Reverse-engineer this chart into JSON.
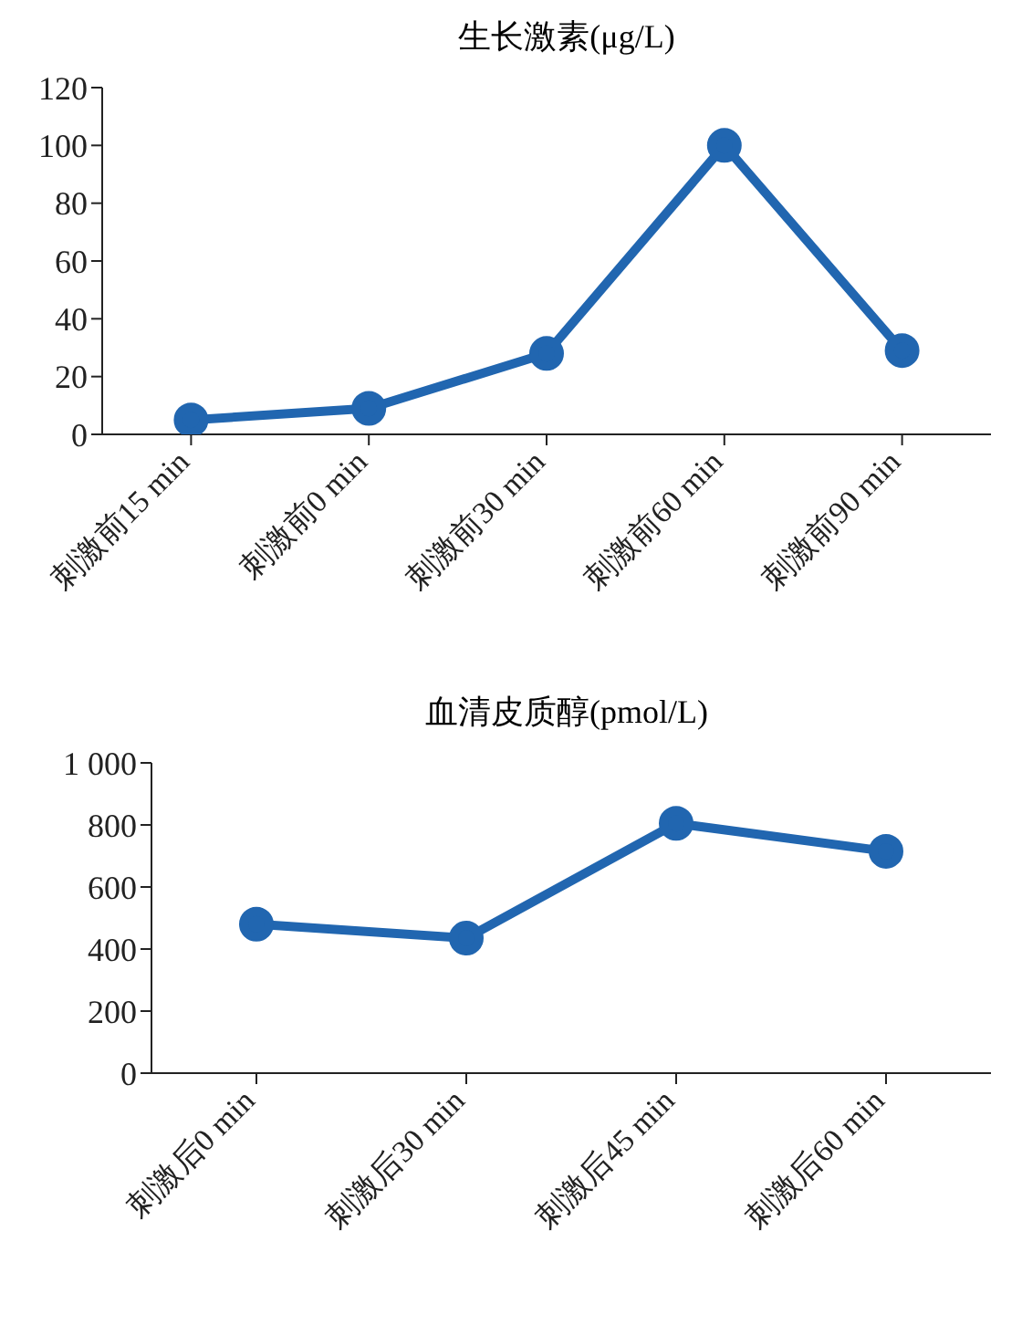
{
  "chart_data": [
    {
      "type": "line",
      "title": "生长激素(μg/L)",
      "categories": [
        "刺激前15 min",
        "刺激前0 min",
        "刺激前30 min",
        "刺激前60 min",
        "刺激前90 min"
      ],
      "series": [
        {
          "color": "#2166b0",
          "values": [
            5,
            9,
            28,
            100,
            29
          ]
        }
      ],
      "ylim": [
        0,
        120
      ],
      "yticks": [
        0,
        20,
        40,
        60,
        80,
        100,
        120
      ],
      "grid": false,
      "legend": false,
      "marker": "circle",
      "line_style": "solid"
    },
    {
      "type": "line",
      "title": "血清皮质醇(pmol/L)",
      "categories": [
        "刺激后0 min",
        "刺激后30 min",
        "刺激后45 min",
        "刺激后60 min"
      ],
      "series": [
        {
          "color": "#2166b0",
          "values": [
            480,
            435,
            805,
            715
          ]
        }
      ],
      "ylim": [
        0,
        1000
      ],
      "yticks": [
        0,
        200,
        400,
        600,
        800,
        {
          "value": 1000,
          "label": "1 000"
        }
      ],
      "grid": false,
      "legend": false,
      "marker": "circle",
      "line_style": "solid"
    }
  ]
}
